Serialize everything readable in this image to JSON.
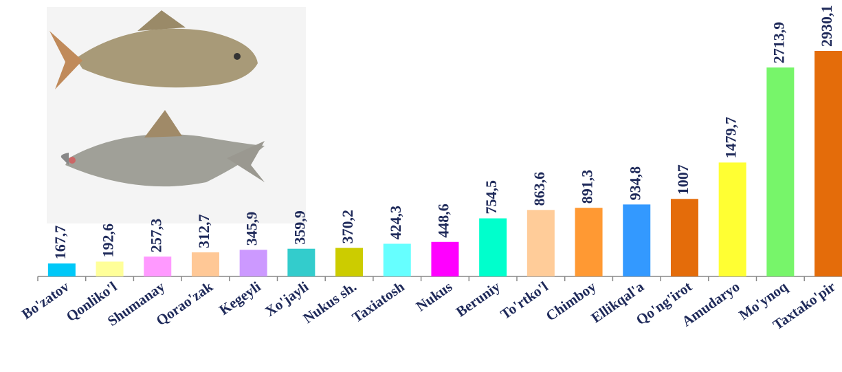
{
  "chart_data": {
    "type": "bar",
    "categories": [
      "Bo'zatov",
      "Qonliko'l",
      "Shumanay",
      "Qorao'zak",
      "Kegeyli",
      "Xo'jayli",
      "Nukus sh.",
      "Taxiatosh",
      "Nukus",
      "Beruniy",
      "To'rtko'l",
      "Chimboy",
      "Ellikqal'a",
      "Qo'ng'irot",
      "Amudaryo",
      "Mo'ynoq",
      "Taxtako'pir"
    ],
    "values": [
      167.7,
      192.6,
      257.3,
      312.7,
      345.9,
      359.9,
      370.2,
      424.3,
      448.6,
      754.5,
      863.6,
      891.3,
      934.8,
      1007,
      1479.7,
      2713.9,
      2930.1
    ],
    "value_labels": [
      "167,7",
      "192,6",
      "257,3",
      "312,7",
      "345,9",
      "359,9",
      "370,2",
      "424,3",
      "448,6",
      "754,5",
      "863,6",
      "891,3",
      "934,8",
      "1007",
      "1479,7",
      "2713,9",
      "2930,1"
    ],
    "colors": [
      "#00c8f8",
      "#ffff99",
      "#ff99ff",
      "#ffc896",
      "#cc99ff",
      "#33cccc",
      "#cccc00",
      "#66ffff",
      "#ff00ff",
      "#00ffcc",
      "#ffcc99",
      "#ff9933",
      "#3399ff",
      "#e46c0a",
      "#ffff33",
      "#77f56a",
      "#e46c0a"
    ]
  }
}
